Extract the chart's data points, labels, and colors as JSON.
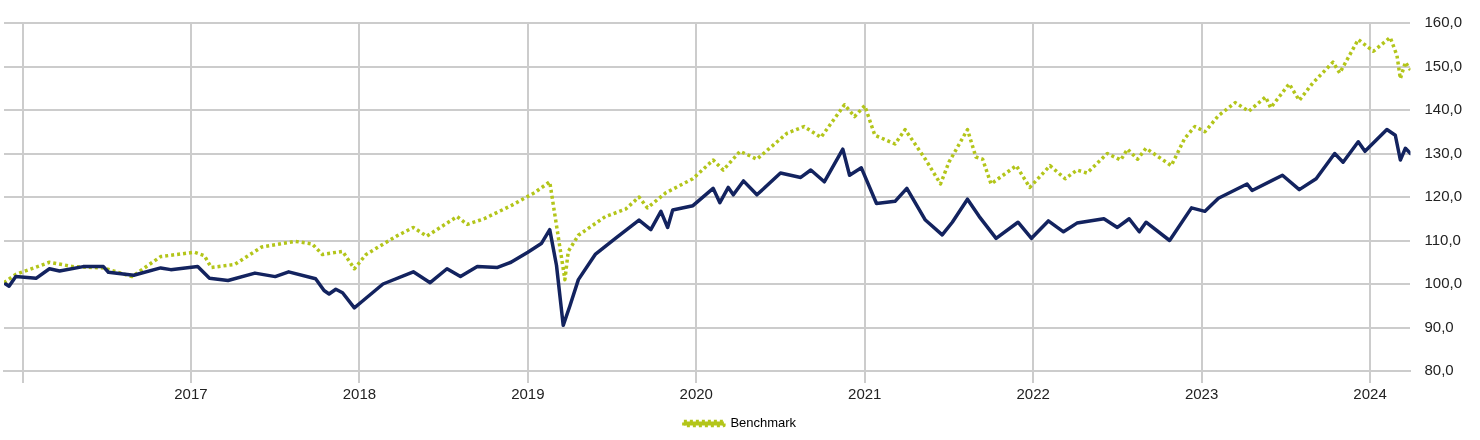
{
  "chart_data": {
    "type": "line",
    "xlim": [
      2015.89,
      2024.24
    ],
    "ylim": [
      80,
      160
    ],
    "xticks": [
      {
        "value": 2016,
        "label": null
      },
      2017,
      2018,
      2019,
      2020,
      2021,
      2022,
      2023,
      2024
    ],
    "yticks": [
      {
        "value": 80,
        "label": "80,0"
      },
      {
        "value": 90,
        "label": "90,0"
      },
      {
        "value": 100,
        "label": "100,0"
      },
      {
        "value": 110,
        "label": "110,0"
      },
      {
        "value": 120,
        "label": "120,0"
      },
      {
        "value": 130,
        "label": "130,0"
      },
      {
        "value": 140,
        "label": "140,0"
      },
      {
        "value": 150,
        "label": "150,0"
      },
      {
        "value": 160,
        "label": "160,0"
      }
    ],
    "grid": true,
    "legend": "bottom",
    "marker": "none",
    "series": [
      {
        "color": "#13235f",
        "line_style": "solid",
        "x": [
          2015.9,
          2015.92,
          2015.96,
          2016.08,
          2016.16,
          2016.22,
          2016.36,
          2016.48,
          2016.51,
          2016.66,
          2016.82,
          2016.88,
          2017.04,
          2017.11,
          2017.22,
          2017.38,
          2017.5,
          2017.58,
          2017.74,
          2017.79,
          2017.82,
          2017.86,
          2017.9,
          2017.97,
          2018.01,
          2018.14,
          2018.32,
          2018.42,
          2018.52,
          2018.6,
          2018.7,
          2018.82,
          2018.9,
          2019.0,
          2019.08,
          2019.13,
          2019.17,
          2019.21,
          2019.25,
          2019.3,
          2019.4,
          2019.52,
          2019.66,
          2019.73,
          2019.79,
          2019.83,
          2019.86,
          2019.98,
          2020.1,
          2020.14,
          2020.19,
          2020.22,
          2020.28,
          2020.36,
          2020.5,
          2020.62,
          2020.68,
          2020.76,
          2020.87,
          2020.91,
          2020.98,
          2021.07,
          2021.18,
          2021.25,
          2021.36,
          2021.46,
          2021.52,
          2021.61,
          2021.68,
          2021.78,
          2021.91,
          2021.99,
          2022.09,
          2022.18,
          2022.26,
          2022.42,
          2022.5,
          2022.57,
          2022.63,
          2022.67,
          2022.81,
          2022.94,
          2023.02,
          2023.1,
          2023.27,
          2023.3,
          2023.48,
          2023.58,
          2023.68,
          2023.79,
          2023.84,
          2023.93,
          2023.97,
          2024.1,
          2024.15,
          2024.18,
          2024.21,
          2024.24
        ],
        "values": [
          100,
          99.5,
          101.7,
          101.3,
          103.5,
          103,
          104,
          104,
          102.7,
          102,
          103.7,
          103.3,
          104,
          101.3,
          100.8,
          102.5,
          101.7,
          102.8,
          101.2,
          98.5,
          97.7,
          98.8,
          98,
          94.5,
          95.8,
          100,
          102.8,
          100.3,
          103.5,
          101.7,
          104,
          103.8,
          105,
          107.3,
          109.3,
          112.5,
          104.3,
          90.5,
          95,
          101,
          106.8,
          110.5,
          114.7,
          112.5,
          116.7,
          113,
          117,
          118,
          122,
          118.7,
          122.2,
          120.5,
          123.7,
          120.5,
          125.5,
          124.5,
          126.2,
          123.5,
          131,
          125,
          126.7,
          118.5,
          119,
          122,
          114.7,
          111.3,
          114.2,
          119.5,
          115.5,
          110.5,
          114.2,
          110.5,
          114.5,
          112,
          114,
          115,
          113,
          115,
          112,
          114.2,
          110,
          117.5,
          116.7,
          119.7,
          123,
          121.5,
          125,
          121.7,
          124.2,
          130,
          128,
          132.7,
          130.5,
          135.5,
          134.2,
          128.5,
          131.2,
          130
        ]
      },
      {
        "name": "Benchmark",
        "color": "#b3c51a",
        "line_style": "dotted",
        "x": [
          2015.89,
          2015.96,
          2016.16,
          2016.3,
          2016.48,
          2016.65,
          2016.82,
          2017.02,
          2017.08,
          2017.12,
          2017.26,
          2017.42,
          2017.62,
          2017.72,
          2017.78,
          2017.9,
          2017.97,
          2018.04,
          2018.22,
          2018.32,
          2018.4,
          2018.58,
          2018.64,
          2018.74,
          2018.82,
          2018.9,
          2019.04,
          2019.13,
          2019.18,
          2019.22,
          2019.24,
          2019.3,
          2019.46,
          2019.58,
          2019.66,
          2019.71,
          2019.82,
          2019.98,
          2020.1,
          2020.16,
          2020.26,
          2020.36,
          2020.54,
          2020.64,
          2020.74,
          2020.88,
          2020.94,
          2021.0,
          2021.06,
          2021.18,
          2021.24,
          2021.36,
          2021.45,
          2021.5,
          2021.61,
          2021.66,
          2021.7,
          2021.75,
          2021.9,
          2021.98,
          2022.1,
          2022.19,
          2022.26,
          2022.32,
          2022.44,
          2022.52,
          2022.56,
          2022.62,
          2022.67,
          2022.82,
          2022.9,
          2022.96,
          2023.02,
          2023.1,
          2023.2,
          2023.28,
          2023.38,
          2023.41,
          2023.52,
          2023.58,
          2023.66,
          2023.78,
          2023.82,
          2023.93,
          2024.02,
          2024.12,
          2024.16,
          2024.18,
          2024.21,
          2024.24
        ],
        "values": [
          100.3,
          102.2,
          105,
          104,
          103.7,
          101.7,
          106.3,
          107.3,
          106.5,
          103.8,
          104.5,
          108.5,
          109.8,
          109.2,
          106.8,
          107.5,
          103.5,
          106.8,
          111,
          113,
          111,
          115.5,
          113.7,
          115,
          116.5,
          118,
          121,
          123.5,
          111,
          101,
          107.5,
          111.2,
          115.5,
          117.2,
          120,
          117.5,
          121,
          124.2,
          128.5,
          126.2,
          130.5,
          128.7,
          134.7,
          136.2,
          133.7,
          141.2,
          138.5,
          141,
          134.2,
          132.2,
          135.5,
          128.7,
          123,
          128,
          135.5,
          129.2,
          128.7,
          123,
          127.2,
          122.2,
          127.2,
          124.2,
          126.2,
          125.5,
          130,
          128.5,
          131,
          128.7,
          131.2,
          127.2,
          133.5,
          136.2,
          135,
          138.7,
          141.7,
          139.7,
          143,
          140.5,
          146,
          142.2,
          146.2,
          151,
          148.5,
          156.2,
          153.5,
          156.7,
          152.5,
          147.2,
          151,
          149.2
        ]
      }
    ]
  }
}
